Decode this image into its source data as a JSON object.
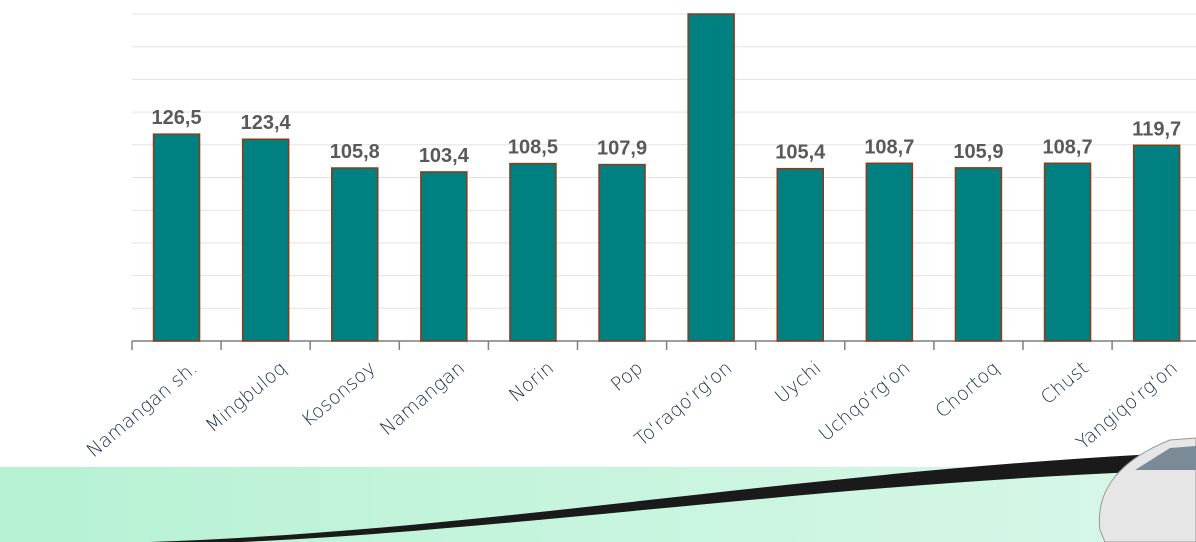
{
  "chart_data": {
    "type": "bar",
    "categories": [
      "Namangan sh.",
      "Mingbuloq",
      "Kosonsoy",
      "Namangan",
      "Norin",
      "Pop",
      "To‘raqo‘rg‘on",
      "Uychi",
      "Uchqo‘rg‘on",
      "Chortoq",
      "Chust",
      "Yangiqo‘rg‘on"
    ],
    "values": [
      126.5,
      123.4,
      105.8,
      103.4,
      108.5,
      107.9,
      200,
      105.4,
      108.7,
      105.9,
      108.7,
      119.7
    ],
    "value_labels": [
      "126,5",
      "123,4",
      "105,8",
      "103,4",
      "108,5",
      "107,9",
      null,
      "105,4",
      "108,7",
      "105,9",
      "108,7",
      "119,7"
    ],
    "color": "#008080",
    "ylim": [
      0,
      200
    ],
    "yticks": [
      0,
      20,
      40,
      60,
      80,
      100,
      120,
      140,
      160,
      180,
      200
    ],
    "grid": true
  }
}
